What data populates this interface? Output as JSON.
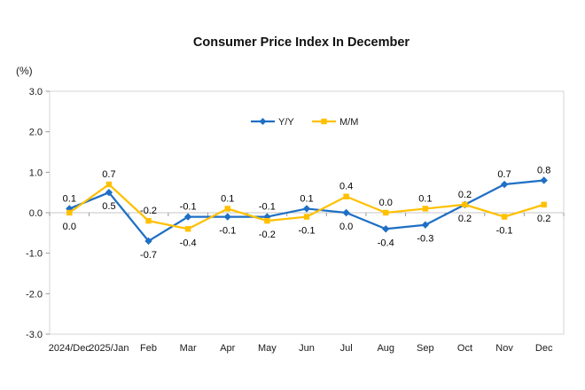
{
  "chart_data": {
    "type": "line",
    "title": "Consumer Price Index In December",
    "unit_label": "(%)",
    "categories": [
      "2024/Dec",
      "2025/Jan",
      "Feb",
      "Mar",
      "Apr",
      "May",
      "Jun",
      "Jul",
      "Aug",
      "Sep",
      "Oct",
      "Nov",
      "Dec"
    ],
    "series": [
      {
        "name": "Y/Y",
        "color": "#1F6FC5",
        "marker": "diamond",
        "values": [
          0.1,
          0.5,
          -0.7,
          -0.1,
          -0.1,
          -0.1,
          0.1,
          0.0,
          -0.4,
          -0.3,
          0.2,
          0.7,
          0.8
        ]
      },
      {
        "name": "M/M",
        "color": "#FFC000",
        "marker": "square",
        "values": [
          0.0,
          0.7,
          -0.2,
          -0.4,
          0.1,
          -0.2,
          -0.1,
          0.4,
          0.0,
          0.1,
          0.2,
          -0.1,
          0.2
        ]
      }
    ],
    "ylim": [
      -3.0,
      3.0
    ],
    "ytick_labels": [
      "3.0",
      "2.0",
      "1.0",
      "0.0",
      "-1.0",
      "-2.0",
      "-3.0"
    ],
    "data_label_decimals": 1,
    "legend_position": "top-center-inside",
    "grid": "zero-line-only",
    "colors": {
      "zero_line": "#C6C6C6",
      "plot_frame": "#D4D4D4",
      "tick": "#999999"
    }
  }
}
